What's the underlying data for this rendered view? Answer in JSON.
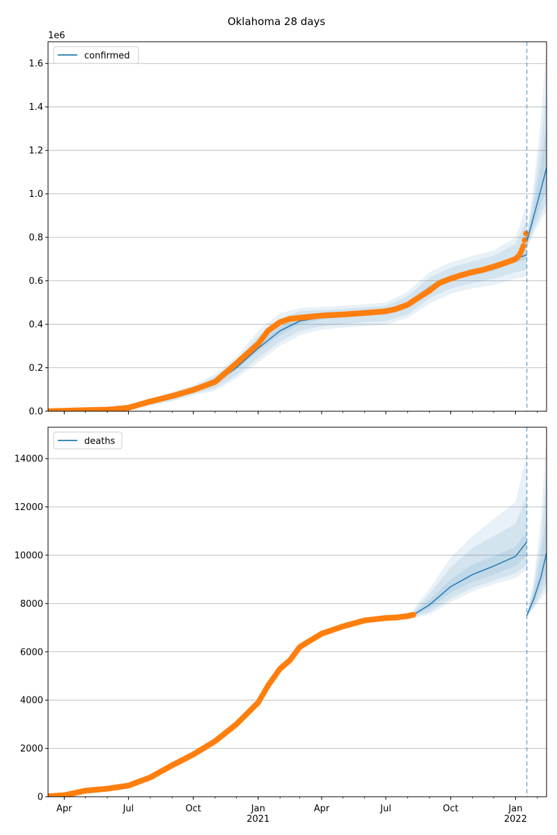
{
  "title": "Oklahoma 28 days",
  "colors": {
    "model": "#1f77b4",
    "observed": "#ff7f0e",
    "grid": "#b0b0b0",
    "band": "#1f77b4"
  },
  "chart_data": [
    {
      "type": "line",
      "panel": "top",
      "legend": [
        "confirmed"
      ],
      "legend_loc": "upper left",
      "grid": "horizontal",
      "offset_label": "1e6",
      "x_range": [
        "2020-03-09",
        "2022-02-14"
      ],
      "forecast_start": "2022-01-17",
      "ylim": [
        0,
        1.7
      ],
      "yticks": [
        0.0,
        0.2,
        0.4,
        0.6,
        0.8,
        1.0,
        1.2,
        1.4,
        1.6
      ],
      "ytick_labels": [
        "0.0",
        "0.2",
        "0.4",
        "0.6",
        "0.8",
        "1.0",
        "1.2",
        "1.4",
        "1.6"
      ],
      "fit": {
        "x": [
          "2020-03-09",
          "2020-04-01",
          "2020-05-01",
          "2020-06-01",
          "2020-07-01",
          "2020-08-01",
          "2020-09-01",
          "2020-10-01",
          "2020-11-01",
          "2020-12-01",
          "2021-01-01",
          "2021-02-01",
          "2021-03-01",
          "2021-04-01",
          "2021-05-01",
          "2021-06-01",
          "2021-07-01",
          "2021-08-01",
          "2021-09-01",
          "2021-10-01",
          "2021-11-01",
          "2021-12-01",
          "2022-01-01",
          "2022-01-17"
        ],
        "y": [
          0.0,
          0.002,
          0.005,
          0.007,
          0.015,
          0.04,
          0.065,
          0.095,
          0.13,
          0.2,
          0.29,
          0.37,
          0.415,
          0.432,
          0.44,
          0.447,
          0.455,
          0.49,
          0.57,
          0.615,
          0.64,
          0.66,
          0.7,
          0.72
        ],
        "band1": [
          0.0,
          0.002,
          0.005,
          0.008,
          0.017,
          0.042,
          0.07,
          0.1,
          0.14,
          0.21,
          0.31,
          0.39,
          0.43,
          0.44,
          0.448,
          0.455,
          0.465,
          0.5,
          0.58,
          0.625,
          0.652,
          0.672,
          0.715,
          0.75
        ],
        "band1_low": [
          0.0,
          0.002,
          0.004,
          0.006,
          0.013,
          0.038,
          0.06,
          0.09,
          0.12,
          0.19,
          0.275,
          0.35,
          0.4,
          0.422,
          0.432,
          0.44,
          0.445,
          0.475,
          0.555,
          0.6,
          0.625,
          0.645,
          0.685,
          0.7
        ],
        "band2": [
          0.0,
          0.003,
          0.006,
          0.009,
          0.02,
          0.05,
          0.08,
          0.11,
          0.16,
          0.235,
          0.345,
          0.425,
          0.46,
          0.465,
          0.47,
          0.477,
          0.485,
          0.53,
          0.615,
          0.66,
          0.69,
          0.715,
          0.77,
          0.88
        ],
        "band2_low": [
          0.0,
          0.001,
          0.003,
          0.005,
          0.01,
          0.03,
          0.05,
          0.08,
          0.105,
          0.165,
          0.245,
          0.32,
          0.37,
          0.39,
          0.4,
          0.41,
          0.415,
          0.445,
          0.52,
          0.565,
          0.59,
          0.61,
          0.64,
          0.65
        ],
        "band3": [
          0.0,
          0.003,
          0.007,
          0.01,
          0.022,
          0.055,
          0.09,
          0.12,
          0.17,
          0.25,
          0.37,
          0.45,
          0.475,
          0.48,
          0.485,
          0.492,
          0.5,
          0.55,
          0.64,
          0.685,
          0.715,
          0.74,
          0.8,
          0.95
        ],
        "band3_low": [
          0.0,
          0.001,
          0.002,
          0.004,
          0.008,
          0.025,
          0.045,
          0.072,
          0.095,
          0.15,
          0.225,
          0.3,
          0.35,
          0.375,
          0.385,
          0.392,
          0.398,
          0.43,
          0.495,
          0.54,
          0.565,
          0.58,
          0.61,
          0.62
        ]
      },
      "forecast": {
        "x": [
          "2022-01-17",
          "2022-01-27",
          "2022-02-06",
          "2022-02-14"
        ],
        "y": [
          0.78,
          0.9,
          1.02,
          1.12
        ],
        "band_high": [
          0.82,
          1.05,
          1.35,
          1.68
        ],
        "band_low": [
          0.75,
          0.82,
          0.88,
          0.92
        ]
      },
      "observed": {
        "x": [
          "2020-03-09",
          "2020-04-01",
          "2020-05-01",
          "2020-06-01",
          "2020-07-01",
          "2020-08-01",
          "2020-09-01",
          "2020-10-01",
          "2020-11-01",
          "2020-12-01",
          "2021-01-01",
          "2021-01-15",
          "2021-02-01",
          "2021-02-15",
          "2021-03-01",
          "2021-04-01",
          "2021-05-01",
          "2021-06-01",
          "2021-07-01",
          "2021-07-15",
          "2021-08-01",
          "2021-08-15",
          "2021-09-01",
          "2021-09-15",
          "2021-10-01",
          "2021-10-15",
          "2021-11-01",
          "2021-11-15",
          "2021-12-01",
          "2021-12-15",
          "2022-01-01",
          "2022-01-07",
          "2022-01-12",
          "2022-01-15",
          "2022-01-17"
        ],
        "y": [
          0.0,
          0.002,
          0.005,
          0.007,
          0.016,
          0.045,
          0.07,
          0.098,
          0.135,
          0.22,
          0.31,
          0.37,
          0.41,
          0.425,
          0.43,
          0.44,
          0.445,
          0.452,
          0.46,
          0.47,
          0.49,
          0.52,
          0.555,
          0.59,
          0.61,
          0.625,
          0.64,
          0.65,
          0.665,
          0.68,
          0.7,
          0.72,
          0.76,
          0.8,
          0.835
        ]
      }
    },
    {
      "type": "line",
      "panel": "bottom",
      "legend": [
        "deaths"
      ],
      "legend_loc": "upper left",
      "grid": "horizontal",
      "x_range": [
        "2020-03-09",
        "2022-02-14"
      ],
      "forecast_start": "2022-01-17",
      "ylim": [
        0,
        15300
      ],
      "yticks": [
        0,
        2000,
        4000,
        6000,
        8000,
        10000,
        12000,
        14000
      ],
      "ytick_labels": [
        "0",
        "2000",
        "4000",
        "6000",
        "8000",
        "10000",
        "12000",
        "14000"
      ],
      "xtick_labels": [
        "Apr",
        "Jul",
        "Oct",
        "Jan\n2021",
        "Apr",
        "Jul",
        "Oct",
        "Jan\n2022"
      ],
      "xtick_dates": [
        "2020-04-01",
        "2020-07-01",
        "2020-10-01",
        "2021-01-01",
        "2021-04-01",
        "2021-07-01",
        "2021-10-01",
        "2022-01-01"
      ],
      "fit": {
        "x": [
          "2021-08-10",
          "2021-09-01",
          "2021-10-01",
          "2021-11-01",
          "2021-12-01",
          "2022-01-01",
          "2022-01-17"
        ],
        "y": [
          7550,
          7950,
          8700,
          9200,
          9550,
          9950,
          10550
        ],
        "band1": [
          7600,
          8150,
          9000,
          9600,
          9950,
          10350,
          11000
        ],
        "band1_low": [
          7500,
          7800,
          8450,
          8900,
          9200,
          9550,
          10000
        ],
        "band2": [
          7700,
          8400,
          9500,
          10300,
          10800,
          11300,
          12500
        ],
        "band2_low": [
          7450,
          7650,
          8200,
          8650,
          8950,
          9250,
          9600
        ],
        "band3": [
          7800,
          8600,
          9900,
          10800,
          11500,
          12200,
          14200
        ],
        "band3_low": [
          7400,
          7550,
          8050,
          8500,
          8800,
          9050,
          9400
        ]
      },
      "forecast": {
        "x": [
          "2022-01-17",
          "2022-01-27",
          "2022-02-06",
          "2022-02-14"
        ],
        "y": [
          7500,
          8200,
          9100,
          10100
        ],
        "band_high": [
          7550,
          9000,
          11500,
          15000
        ],
        "band_low": [
          7450,
          7800,
          8200,
          8500
        ]
      },
      "observed": {
        "x": [
          "2020-03-09",
          "2020-04-01",
          "2020-05-01",
          "2020-06-01",
          "2020-07-01",
          "2020-08-01",
          "2020-09-01",
          "2020-10-01",
          "2020-11-01",
          "2020-12-01",
          "2021-01-01",
          "2021-01-15",
          "2021-02-01",
          "2021-02-15",
          "2021-03-01",
          "2021-03-15",
          "2021-04-01",
          "2021-05-01",
          "2021-06-01",
          "2021-07-01",
          "2021-07-15",
          "2021-08-01",
          "2021-08-10"
        ],
        "y": [
          20,
          60,
          250,
          330,
          460,
          800,
          1300,
          1750,
          2300,
          3000,
          3900,
          4600,
          5300,
          5650,
          6200,
          6450,
          6750,
          7050,
          7300,
          7400,
          7420,
          7480,
          7540
        ]
      }
    }
  ]
}
